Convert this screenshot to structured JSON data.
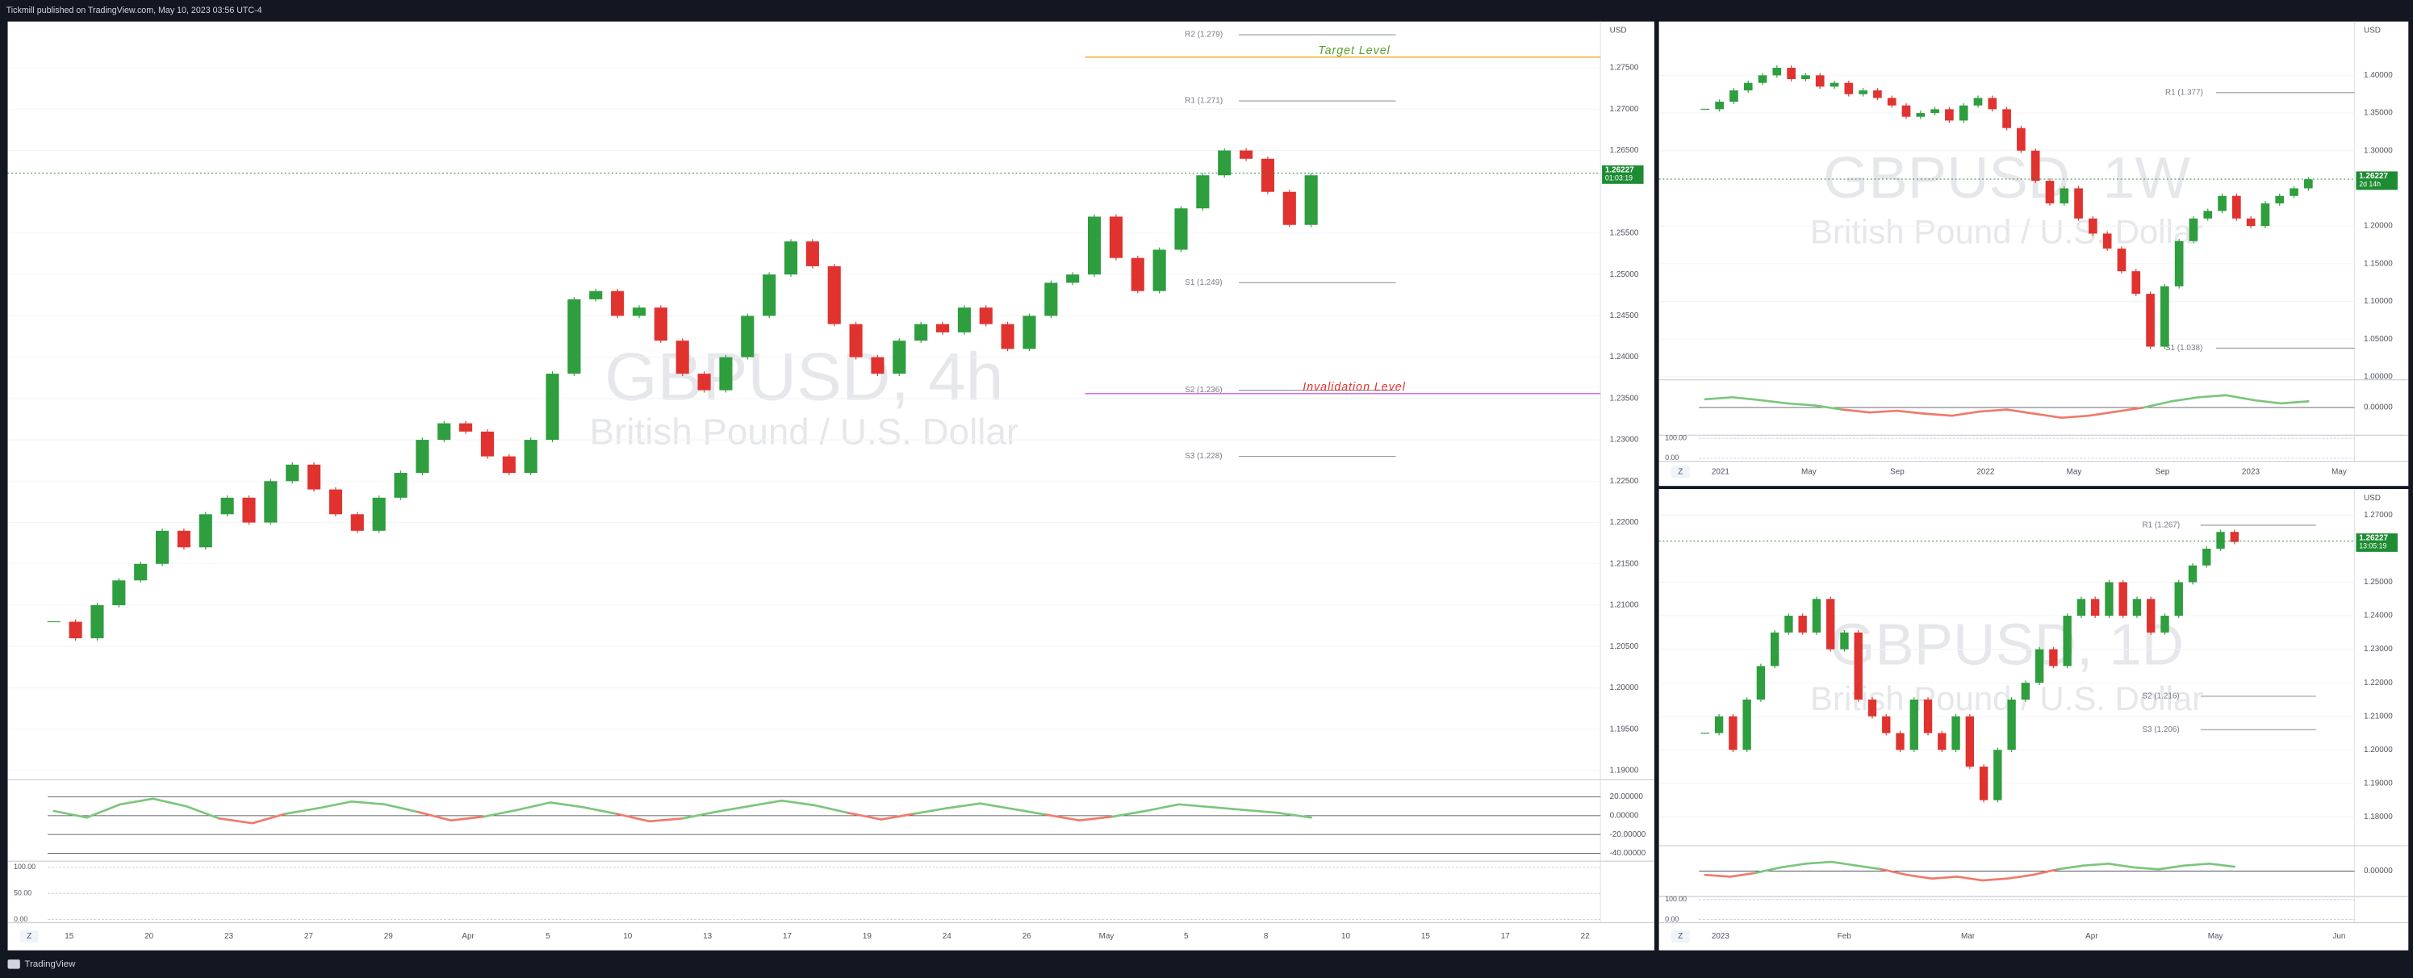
{
  "header": {
    "text": "Tickmill published on TradingView.com, May 10, 2023 03:56 UTC-4"
  },
  "footer": {
    "brand": "TradingView"
  },
  "chart_data": [
    {
      "type": "candlestick",
      "title": "GBPUSD, 4h",
      "subtitle": "British Pound / U.S. Dollar",
      "currency": "USD",
      "z_button": "Z",
      "closes": [
        1.208,
        1.206,
        1.21,
        1.213,
        1.215,
        1.219,
        1.217,
        1.221,
        1.223,
        1.22,
        1.225,
        1.227,
        1.224,
        1.221,
        1.219,
        1.223,
        1.226,
        1.23,
        1.232,
        1.231,
        1.228,
        1.226,
        1.23,
        1.238,
        1.247,
        1.248,
        1.245,
        1.246,
        1.242,
        1.238,
        1.236,
        1.24,
        1.245,
        1.25,
        1.254,
        1.251,
        1.244,
        1.24,
        1.238,
        1.242,
        1.244,
        1.243,
        1.246,
        1.244,
        1.241,
        1.245,
        1.249,
        1.25,
        1.257,
        1.252,
        1.248,
        1.253,
        1.258,
        1.262,
        1.265,
        1.264,
        1.26,
        1.256,
        1.262
      ],
      "ylim": [
        1.1889,
        1.2806
      ],
      "yticks": [
        {
          "value": 1.19,
          "label": "1.19000"
        },
        {
          "value": 1.195,
          "label": "1.19500"
        },
        {
          "value": 1.2,
          "label": "1.20000"
        },
        {
          "value": 1.205,
          "label": "1.20500"
        },
        {
          "value": 1.21,
          "label": "1.21000"
        },
        {
          "value": 1.215,
          "label": "1.21500"
        },
        {
          "value": 1.22,
          "label": "1.22000"
        },
        {
          "value": 1.225,
          "label": "1.22500"
        },
        {
          "value": 1.23,
          "label": "1.23000"
        },
        {
          "value": 1.235,
          "label": "1.23500"
        },
        {
          "value": 1.24,
          "label": "1.24000"
        },
        {
          "value": 1.245,
          "label": "1.24500"
        },
        {
          "value": 1.25,
          "label": "1.25000"
        },
        {
          "value": 1.255,
          "label": "1.25500"
        },
        {
          "value": 1.265,
          "label": "1.26500"
        },
        {
          "value": 1.27,
          "label": "1.27000"
        },
        {
          "value": 1.275,
          "label": "1.27500"
        }
      ],
      "x_labels": [
        "15",
        "20",
        "23",
        "27",
        "29",
        "Apr",
        "5",
        "10",
        "13",
        "17",
        "19",
        "24",
        "26",
        "May",
        "5",
        "8",
        "10",
        "15",
        "17",
        "22"
      ],
      "price": 1.26227,
      "countdown": "01:03:19",
      "price_color": "#1e8c32",
      "up_color": "#2e9e3e",
      "down_color": "#e0332f",
      "levels": [
        {
          "label": "R2 (1.279)",
          "value": 1.279
        },
        {
          "label": "R1 (1.271)",
          "value": 1.271
        },
        {
          "label": "S1 (1.249)",
          "value": 1.249
        },
        {
          "label": "S2 (1.236)",
          "value": 1.236
        },
        {
          "label": "S3 (1.228)",
          "value": 1.228
        }
      ],
      "annotations": [
        {
          "text": "Target  Level",
          "value": 1.2763,
          "color": "#5aa02c",
          "line_color": "#f0b030"
        },
        {
          "text": "Invalidation Level",
          "value": 1.2356,
          "color": "#e0332f",
          "line_color": "#d070e0"
        }
      ],
      "oscillator": {
        "values": [
          5,
          -2,
          12,
          18,
          10,
          -3,
          -8,
          2,
          8,
          15,
          12,
          4,
          -5,
          -1,
          6,
          14,
          9,
          2,
          -6,
          -3,
          4,
          10,
          16,
          11,
          3,
          -4,
          2,
          8,
          13,
          7,
          1,
          -5,
          -1,
          5,
          12,
          9,
          6,
          3,
          -2
        ],
        "ylim": [
          -45,
          35
        ],
        "yticks": [
          {
            "value": 20,
            "label": "20.00000"
          },
          {
            "value": 0,
            "label": "0.00000"
          },
          {
            "value": -20,
            "label": "-20.00000"
          },
          {
            "value": -40,
            "label": "-40.00000"
          }
        ]
      },
      "stoch": {
        "ylim": [
          0,
          100
        ],
        "yticks": [
          {
            "value": 100,
            "label": "100.00"
          },
          {
            "value": 50,
            "label": "50.00"
          },
          {
            "value": 0,
            "label": "0.00"
          }
        ]
      }
    },
    {
      "type": "candlestick",
      "title": "GBPUSD, 1W",
      "subtitle": "British Pound / U.S. Dollar",
      "currency": "USD",
      "z_button": "Z",
      "closes": [
        1.355,
        1.365,
        1.38,
        1.39,
        1.4,
        1.41,
        1.395,
        1.4,
        1.385,
        1.39,
        1.375,
        1.38,
        1.37,
        1.36,
        1.345,
        1.35,
        1.355,
        1.34,
        1.36,
        1.37,
        1.355,
        1.33,
        1.3,
        1.26,
        1.23,
        1.25,
        1.21,
        1.19,
        1.17,
        1.14,
        1.11,
        1.04,
        1.12,
        1.18,
        1.21,
        1.22,
        1.24,
        1.21,
        1.2,
        1.23,
        1.24,
        1.25,
        1.262
      ],
      "ylim": [
        0.9959,
        1.4714
      ],
      "yticks": [
        {
          "value": 1.0,
          "label": "1.00000"
        },
        {
          "value": 1.05,
          "label": "1.05000"
        },
        {
          "value": 1.1,
          "label": "1.10000"
        },
        {
          "value": 1.15,
          "label": "1.15000"
        },
        {
          "value": 1.2,
          "label": "1.20000"
        },
        {
          "value": 1.3,
          "label": "1.30000"
        },
        {
          "value": 1.35,
          "label": "1.35000"
        },
        {
          "value": 1.4,
          "label": "1.40000"
        }
      ],
      "x_labels": [
        "2021",
        "May",
        "Sep",
        "2022",
        "May",
        "Sep",
        "2023",
        "May"
      ],
      "price": 1.26227,
      "countdown": "2d 14h",
      "price_color": "#1e8c32",
      "up_color": "#2e9e3e",
      "down_color": "#e0332f",
      "levels": [
        {
          "label": "R1 (1.377)",
          "value": 1.377
        },
        {
          "label": "S1 (1.038)",
          "value": 1.038
        }
      ],
      "oscillator": {
        "values": [
          20,
          25,
          18,
          10,
          5,
          -5,
          -12,
          -8,
          -15,
          -20,
          -10,
          -5,
          -15,
          -25,
          -20,
          -10,
          0,
          15,
          25,
          30,
          18,
          10,
          15
        ],
        "ylim": [
          -60,
          60
        ],
        "yticks": [
          {
            "value": 0,
            "label": "0.00000"
          }
        ]
      },
      "stoch": {
        "ylim": [
          0,
          100
        ],
        "yticks": [
          {
            "value": 100,
            "label": "100.00"
          },
          {
            "value": 0,
            "label": "0.00"
          }
        ]
      }
    },
    {
      "type": "candlestick",
      "title": "GBPUSD, 1D",
      "subtitle": "British Pound / U.S. Dollar",
      "currency": "USD",
      "z_button": "Z",
      "closes": [
        1.205,
        1.21,
        1.2,
        1.215,
        1.225,
        1.235,
        1.24,
        1.235,
        1.245,
        1.23,
        1.235,
        1.215,
        1.21,
        1.205,
        1.2,
        1.215,
        1.205,
        1.2,
        1.21,
        1.195,
        1.185,
        1.2,
        1.215,
        1.22,
        1.23,
        1.225,
        1.24,
        1.245,
        1.24,
        1.25,
        1.24,
        1.245,
        1.235,
        1.24,
        1.25,
        1.255,
        1.26,
        1.265,
        1.262
      ],
      "ylim": [
        1.1714,
        1.2778
      ],
      "yticks": [
        {
          "value": 1.18,
          "label": "1.18000"
        },
        {
          "value": 1.19,
          "label": "1.19000"
        },
        {
          "value": 1.2,
          "label": "1.20000"
        },
        {
          "value": 1.21,
          "label": "1.21000"
        },
        {
          "value": 1.22,
          "label": "1.22000"
        },
        {
          "value": 1.23,
          "label": "1.23000"
        },
        {
          "value": 1.24,
          "label": "1.24000"
        },
        {
          "value": 1.25,
          "label": "1.25000"
        },
        {
          "value": 1.27,
          "label": "1.27000"
        }
      ],
      "x_labels": [
        "2023",
        "Feb",
        "Mar",
        "Apr",
        "May",
        "Jun"
      ],
      "price": 1.26227,
      "countdown": "13:05:19",
      "price_color": "#1e8c32",
      "up_color": "#2e9e3e",
      "down_color": "#e0332f",
      "levels": [
        {
          "label": "R1 (1.267)",
          "value": 1.267
        },
        {
          "label": "S2 (1.216)",
          "value": 1.216
        },
        {
          "label": "S3 (1.206)",
          "value": 1.206
        }
      ],
      "oscillator": {
        "values": [
          -10,
          -15,
          -5,
          10,
          20,
          25,
          15,
          5,
          -10,
          -20,
          -15,
          -25,
          -20,
          -10,
          5,
          15,
          20,
          10,
          5,
          15,
          20,
          12
        ],
        "ylim": [
          -60,
          60
        ],
        "yticks": [
          {
            "value": 0,
            "label": "0.00000"
          }
        ]
      },
      "stoch": {
        "ylim": [
          0,
          100
        ],
        "yticks": [
          {
            "value": 100,
            "label": "100.00"
          },
          {
            "value": 0,
            "label": "0.00"
          }
        ]
      }
    }
  ]
}
